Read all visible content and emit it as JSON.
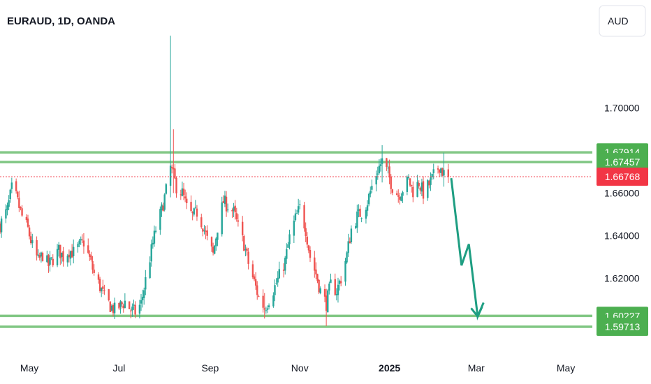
{
  "header": {
    "title": "EURAUD, 1D, OANDA",
    "currency_button": "AUD"
  },
  "colors": {
    "up": "#26a69a",
    "down": "#ef5350",
    "level_line": "#81c784",
    "level_badge": "#4caf50",
    "last_price": "#f23645",
    "arrow": "#1e9e82"
  },
  "chart_data": {
    "type": "candlestick",
    "title": "EURAUD, 1D, OANDA",
    "instrument": "EURAUD",
    "timeframe": "1D",
    "source": "OANDA",
    "currency": "AUD",
    "grid": false,
    "ylim": [
      1.585,
      1.7475
    ],
    "xlim": [
      "2024-04-11",
      "2025-05-19"
    ],
    "y_ticks": [
      "1.70000",
      "1.66000",
      "1.64000",
      "1.62000"
    ],
    "x_ticks": [
      {
        "label": "May",
        "date": "2024-05-01",
        "bold": false
      },
      {
        "label": "Jul",
        "date": "2024-07-01",
        "bold": false
      },
      {
        "label": "Sep",
        "date": "2024-09-01",
        "bold": false
      },
      {
        "label": "Nov",
        "date": "2024-11-01",
        "bold": false
      },
      {
        "label": "2025",
        "date": "2025-01-01",
        "bold": true
      },
      {
        "label": "Mar",
        "date": "2025-03-01",
        "bold": false
      },
      {
        "label": "May",
        "date": "2025-05-01",
        "bold": false
      }
    ],
    "levels": [
      {
        "label": "1.67914",
        "value": 1.67914
      },
      {
        "label": "1.67457",
        "value": 1.67457
      },
      {
        "label": "1.60227",
        "value": 1.60227
      },
      {
        "label": "1.59713",
        "value": 1.59713
      }
    ],
    "last_price": {
      "label": "1.66768",
      "value": 1.66768
    },
    "close_path": [
      [
        "2024-04-11",
        1.645
      ],
      [
        "2024-04-16",
        1.652
      ],
      [
        "2024-04-19",
        1.662
      ],
      [
        "2024-04-22",
        1.658
      ],
      [
        "2024-04-26",
        1.649
      ],
      [
        "2024-04-30",
        1.643
      ],
      [
        "2024-05-03",
        1.635
      ],
      [
        "2024-05-07",
        1.628
      ],
      [
        "2024-05-10",
        1.631
      ],
      [
        "2024-05-14",
        1.626
      ],
      [
        "2024-05-17",
        1.629
      ],
      [
        "2024-05-21",
        1.633
      ],
      [
        "2024-05-24",
        1.63
      ],
      [
        "2024-05-28",
        1.633
      ],
      [
        "2024-05-31",
        1.632
      ],
      [
        "2024-06-04",
        1.635
      ],
      [
        "2024-06-07",
        1.637
      ],
      [
        "2024-06-11",
        1.629
      ],
      [
        "2024-06-14",
        1.622
      ],
      [
        "2024-06-18",
        1.616
      ],
      [
        "2024-06-21",
        1.611
      ],
      [
        "2024-06-25",
        1.607
      ],
      [
        "2024-06-28",
        1.605
      ],
      [
        "2024-07-02",
        1.607
      ],
      [
        "2024-07-05",
        1.609
      ],
      [
        "2024-07-09",
        1.605
      ],
      [
        "2024-07-12",
        1.604
      ],
      [
        "2024-07-16",
        1.608
      ],
      [
        "2024-07-19",
        1.619
      ],
      [
        "2024-07-23",
        1.633
      ],
      [
        "2024-07-26",
        1.643
      ],
      [
        "2024-07-30",
        1.652
      ],
      [
        "2024-08-02",
        1.661
      ],
      [
        "2024-08-05",
        1.672
      ],
      [
        "2024-08-07",
        1.668
      ],
      [
        "2024-08-09",
        1.663
      ],
      [
        "2024-08-13",
        1.66
      ],
      [
        "2024-08-16",
        1.653
      ],
      [
        "2024-08-20",
        1.649
      ],
      [
        "2024-08-23",
        1.651
      ],
      [
        "2024-08-27",
        1.645
      ],
      [
        "2024-08-30",
        1.638
      ],
      [
        "2024-09-03",
        1.631
      ],
      [
        "2024-09-06",
        1.644
      ],
      [
        "2024-09-10",
        1.656
      ],
      [
        "2024-09-13",
        1.654
      ],
      [
        "2024-09-17",
        1.651
      ],
      [
        "2024-09-20",
        1.644
      ],
      [
        "2024-09-24",
        1.636
      ],
      [
        "2024-09-27",
        1.627
      ],
      [
        "2024-10-01",
        1.618
      ],
      [
        "2024-10-04",
        1.611
      ],
      [
        "2024-10-08",
        1.606
      ],
      [
        "2024-10-11",
        1.61
      ],
      [
        "2024-10-15",
        1.616
      ],
      [
        "2024-10-18",
        1.621
      ],
      [
        "2024-10-22",
        1.628
      ],
      [
        "2024-10-25",
        1.639
      ],
      [
        "2024-10-29",
        1.648
      ],
      [
        "2024-11-01",
        1.653
      ],
      [
        "2024-11-05",
        1.643
      ],
      [
        "2024-11-08",
        1.63
      ],
      [
        "2024-11-12",
        1.622
      ],
      [
        "2024-11-15",
        1.614
      ],
      [
        "2024-11-19",
        1.608
      ],
      [
        "2024-11-22",
        1.617
      ],
      [
        "2024-11-26",
        1.614
      ],
      [
        "2024-11-29",
        1.62
      ],
      [
        "2024-12-03",
        1.631
      ],
      [
        "2024-12-06",
        1.643
      ],
      [
        "2024-12-10",
        1.649
      ],
      [
        "2024-12-13",
        1.651
      ],
      [
        "2024-12-17",
        1.656
      ],
      [
        "2024-12-20",
        1.663
      ],
      [
        "2024-12-24",
        1.671
      ],
      [
        "2024-12-27",
        1.675
      ],
      [
        "2024-12-31",
        1.669
      ],
      [
        "2025-01-03",
        1.663
      ],
      [
        "2025-01-07",
        1.659
      ],
      [
        "2025-01-10",
        1.662
      ],
      [
        "2025-01-14",
        1.666
      ],
      [
        "2025-01-17",
        1.661
      ],
      [
        "2025-01-21",
        1.665
      ],
      [
        "2025-01-24",
        1.66
      ],
      [
        "2025-01-28",
        1.664
      ],
      [
        "2025-01-31",
        1.668
      ],
      [
        "2025-02-04",
        1.673
      ],
      [
        "2025-02-07",
        1.669
      ],
      [
        "2025-02-10",
        1.6677
      ]
    ],
    "spikes": [
      {
        "date": "2024-08-05",
        "high": 1.734,
        "low": 1.658
      },
      {
        "date": "2024-08-07",
        "high": 1.69,
        "low": 1.66
      },
      {
        "date": "2024-11-19",
        "high": 1.61,
        "low": 1.5975
      },
      {
        "date": "2024-10-08",
        "high": 1.613,
        "low": 1.601
      },
      {
        "date": "2024-12-27",
        "high": 1.6825,
        "low": 1.665
      },
      {
        "date": "2025-02-07",
        "high": 1.679,
        "low": 1.663
      }
    ],
    "projection": [
      [
        "2025-02-12",
        1.667
      ],
      [
        "2025-02-19",
        1.626
      ],
      [
        "2025-02-24",
        1.636
      ],
      [
        "2025-03-02",
        1.602
      ],
      [
        "2025-03-06",
        1.6085
      ]
    ]
  }
}
